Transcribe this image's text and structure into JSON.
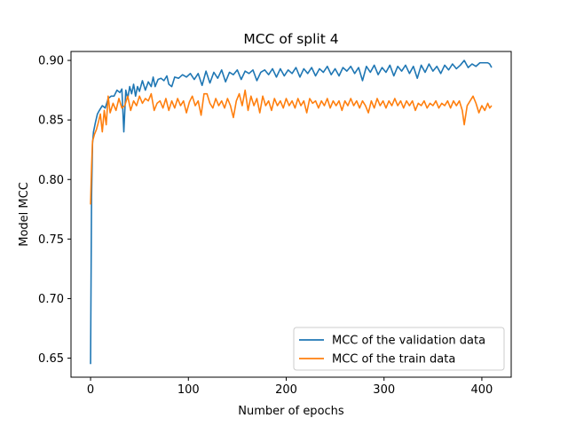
{
  "chart_data": {
    "type": "line",
    "title": "MCC of split 4",
    "xlabel": "Number of epochs",
    "ylabel": "Model MCC",
    "xlim": [
      -20,
      430
    ],
    "ylim": [
      0.634,
      0.9075
    ],
    "xticks": [
      0,
      100,
      200,
      300,
      400
    ],
    "xtick_labels": [
      "0",
      "100",
      "200",
      "300",
      "400"
    ],
    "yticks": [
      0.65,
      0.7,
      0.75,
      0.8,
      0.85,
      0.9
    ],
    "ytick_labels": [
      "0.65",
      "0.70",
      "0.75",
      "0.80",
      "0.85",
      "0.90"
    ],
    "grid": false,
    "legend_position": "lower-right",
    "series": [
      {
        "name": "MCC of the validation data",
        "color": "#1f77b4",
        "points": [
          [
            0,
            0.645
          ],
          [
            1,
            0.785
          ],
          [
            2,
            0.83
          ],
          [
            3,
            0.84
          ],
          [
            5,
            0.848
          ],
          [
            7,
            0.855
          ],
          [
            9,
            0.858
          ],
          [
            12,
            0.862
          ],
          [
            15,
            0.86
          ],
          [
            18,
            0.868
          ],
          [
            21,
            0.87
          ],
          [
            24,
            0.87
          ],
          [
            27,
            0.875
          ],
          [
            30,
            0.873
          ],
          [
            32,
            0.876
          ],
          [
            34,
            0.84
          ],
          [
            36,
            0.875
          ],
          [
            38,
            0.868
          ],
          [
            40,
            0.878
          ],
          [
            42,
            0.872
          ],
          [
            44,
            0.88
          ],
          [
            46,
            0.87
          ],
          [
            48,
            0.878
          ],
          [
            50,
            0.874
          ],
          [
            53,
            0.883
          ],
          [
            56,
            0.875
          ],
          [
            59,
            0.882
          ],
          [
            62,
            0.878
          ],
          [
            64,
            0.886
          ],
          [
            66,
            0.878
          ],
          [
            69,
            0.884
          ],
          [
            72,
            0.885
          ],
          [
            75,
            0.883
          ],
          [
            78,
            0.887
          ],
          [
            80,
            0.88
          ],
          [
            83,
            0.878
          ],
          [
            86,
            0.886
          ],
          [
            90,
            0.885
          ],
          [
            94,
            0.888
          ],
          [
            98,
            0.886
          ],
          [
            102,
            0.889
          ],
          [
            106,
            0.884
          ],
          [
            110,
            0.889
          ],
          [
            114,
            0.879
          ],
          [
            118,
            0.891
          ],
          [
            122,
            0.881
          ],
          [
            126,
            0.89
          ],
          [
            130,
            0.885
          ],
          [
            134,
            0.892
          ],
          [
            138,
            0.882
          ],
          [
            142,
            0.89
          ],
          [
            146,
            0.888
          ],
          [
            150,
            0.892
          ],
          [
            154,
            0.884
          ],
          [
            158,
            0.891
          ],
          [
            162,
            0.889
          ],
          [
            166,
            0.892
          ],
          [
            170,
            0.883
          ],
          [
            174,
            0.89
          ],
          [
            178,
            0.892
          ],
          [
            182,
            0.888
          ],
          [
            186,
            0.893
          ],
          [
            190,
            0.886
          ],
          [
            194,
            0.893
          ],
          [
            198,
            0.887
          ],
          [
            202,
            0.892
          ],
          [
            206,
            0.889
          ],
          [
            210,
            0.894
          ],
          [
            214,
            0.886
          ],
          [
            218,
            0.893
          ],
          [
            222,
            0.889
          ],
          [
            226,
            0.894
          ],
          [
            230,
            0.887
          ],
          [
            234,
            0.893
          ],
          [
            238,
            0.89
          ],
          [
            242,
            0.895
          ],
          [
            246,
            0.888
          ],
          [
            250,
            0.893
          ],
          [
            254,
            0.887
          ],
          [
            258,
            0.894
          ],
          [
            262,
            0.891
          ],
          [
            266,
            0.895
          ],
          [
            270,
            0.889
          ],
          [
            274,
            0.894
          ],
          [
            278,
            0.883
          ],
          [
            282,
            0.895
          ],
          [
            286,
            0.89
          ],
          [
            290,
            0.896
          ],
          [
            294,
            0.888
          ],
          [
            298,
            0.894
          ],
          [
            302,
            0.89
          ],
          [
            306,
            0.896
          ],
          [
            310,
            0.887
          ],
          [
            314,
            0.895
          ],
          [
            318,
            0.891
          ],
          [
            322,
            0.896
          ],
          [
            326,
            0.889
          ],
          [
            330,
            0.895
          ],
          [
            334,
            0.885
          ],
          [
            338,
            0.896
          ],
          [
            342,
            0.89
          ],
          [
            346,
            0.897
          ],
          [
            350,
            0.891
          ],
          [
            354,
            0.895
          ],
          [
            358,
            0.889
          ],
          [
            362,
            0.896
          ],
          [
            366,
            0.892
          ],
          [
            370,
            0.897
          ],
          [
            374,
            0.893
          ],
          [
            378,
            0.896
          ],
          [
            382,
            0.9
          ],
          [
            386,
            0.894
          ],
          [
            390,
            0.897
          ],
          [
            394,
            0.895
          ],
          [
            398,
            0.898
          ],
          [
            402,
            0.898
          ],
          [
            406,
            0.898
          ],
          [
            408,
            0.897
          ],
          [
            410,
            0.894
          ]
        ]
      },
      {
        "name": "MCC of the train data",
        "color": "#ff7f0e",
        "points": [
          [
            0,
            0.779
          ],
          [
            1,
            0.81
          ],
          [
            2,
            0.832
          ],
          [
            4,
            0.838
          ],
          [
            6,
            0.842
          ],
          [
            8,
            0.848
          ],
          [
            10,
            0.855
          ],
          [
            12,
            0.84
          ],
          [
            14,
            0.858
          ],
          [
            16,
            0.846
          ],
          [
            18,
            0.87
          ],
          [
            20,
            0.856
          ],
          [
            23,
            0.864
          ],
          [
            26,
            0.858
          ],
          [
            29,
            0.868
          ],
          [
            32,
            0.86
          ],
          [
            35,
            0.862
          ],
          [
            38,
            0.87
          ],
          [
            41,
            0.858
          ],
          [
            44,
            0.866
          ],
          [
            47,
            0.862
          ],
          [
            50,
            0.87
          ],
          [
            53,
            0.864
          ],
          [
            56,
            0.868
          ],
          [
            59,
            0.866
          ],
          [
            62,
            0.872
          ],
          [
            65,
            0.858
          ],
          [
            68,
            0.864
          ],
          [
            71,
            0.866
          ],
          [
            74,
            0.86
          ],
          [
            77,
            0.868
          ],
          [
            80,
            0.858
          ],
          [
            83,
            0.866
          ],
          [
            86,
            0.86
          ],
          [
            89,
            0.868
          ],
          [
            92,
            0.862
          ],
          [
            95,
            0.866
          ],
          [
            98,
            0.856
          ],
          [
            101,
            0.865
          ],
          [
            104,
            0.87
          ],
          [
            107,
            0.862
          ],
          [
            110,
            0.866
          ],
          [
            113,
            0.854
          ],
          [
            116,
            0.872
          ],
          [
            119,
            0.872
          ],
          [
            122,
            0.864
          ],
          [
            125,
            0.86
          ],
          [
            128,
            0.868
          ],
          [
            131,
            0.862
          ],
          [
            134,
            0.866
          ],
          [
            137,
            0.86
          ],
          [
            140,
            0.868
          ],
          [
            143,
            0.862
          ],
          [
            146,
            0.852
          ],
          [
            149,
            0.866
          ],
          [
            152,
            0.872
          ],
          [
            155,
            0.862
          ],
          [
            158,
            0.875
          ],
          [
            161,
            0.858
          ],
          [
            164,
            0.87
          ],
          [
            167,
            0.862
          ],
          [
            170,
            0.868
          ],
          [
            173,
            0.856
          ],
          [
            176,
            0.87
          ],
          [
            179,
            0.862
          ],
          [
            182,
            0.866
          ],
          [
            185,
            0.858
          ],
          [
            188,
            0.868
          ],
          [
            191,
            0.862
          ],
          [
            194,
            0.866
          ],
          [
            197,
            0.86
          ],
          [
            200,
            0.868
          ],
          [
            203,
            0.862
          ],
          [
            206,
            0.866
          ],
          [
            209,
            0.86
          ],
          [
            212,
            0.868
          ],
          [
            215,
            0.862
          ],
          [
            218,
            0.866
          ],
          [
            221,
            0.856
          ],
          [
            224,
            0.868
          ],
          [
            227,
            0.864
          ],
          [
            230,
            0.866
          ],
          [
            233,
            0.86
          ],
          [
            236,
            0.866
          ],
          [
            239,
            0.862
          ],
          [
            242,
            0.868
          ],
          [
            245,
            0.86
          ],
          [
            248,
            0.866
          ],
          [
            251,
            0.862
          ],
          [
            254,
            0.866
          ],
          [
            257,
            0.858
          ],
          [
            260,
            0.866
          ],
          [
            263,
            0.862
          ],
          [
            266,
            0.868
          ],
          [
            269,
            0.862
          ],
          [
            272,
            0.866
          ],
          [
            275,
            0.86
          ],
          [
            278,
            0.866
          ],
          [
            281,
            0.862
          ],
          [
            284,
            0.856
          ],
          [
            287,
            0.866
          ],
          [
            290,
            0.86
          ],
          [
            293,
            0.868
          ],
          [
            296,
            0.862
          ],
          [
            299,
            0.866
          ],
          [
            302,
            0.86
          ],
          [
            305,
            0.866
          ],
          [
            308,
            0.862
          ],
          [
            311,
            0.868
          ],
          [
            314,
            0.862
          ],
          [
            317,
            0.866
          ],
          [
            320,
            0.86
          ],
          [
            323,
            0.866
          ],
          [
            326,
            0.862
          ],
          [
            329,
            0.866
          ],
          [
            332,
            0.858
          ],
          [
            335,
            0.864
          ],
          [
            338,
            0.862
          ],
          [
            341,
            0.866
          ],
          [
            344,
            0.86
          ],
          [
            347,
            0.864
          ],
          [
            350,
            0.862
          ],
          [
            353,
            0.866
          ],
          [
            356,
            0.86
          ],
          [
            359,
            0.864
          ],
          [
            362,
            0.862
          ],
          [
            365,
            0.866
          ],
          [
            368,
            0.86
          ],
          [
            371,
            0.866
          ],
          [
            374,
            0.862
          ],
          [
            377,
            0.866
          ],
          [
            380,
            0.858
          ],
          [
            382,
            0.846
          ],
          [
            385,
            0.862
          ],
          [
            388,
            0.866
          ],
          [
            391,
            0.87
          ],
          [
            394,
            0.864
          ],
          [
            397,
            0.856
          ],
          [
            400,
            0.862
          ],
          [
            403,
            0.858
          ],
          [
            406,
            0.864
          ],
          [
            408,
            0.86
          ],
          [
            410,
            0.862
          ]
        ]
      }
    ]
  }
}
